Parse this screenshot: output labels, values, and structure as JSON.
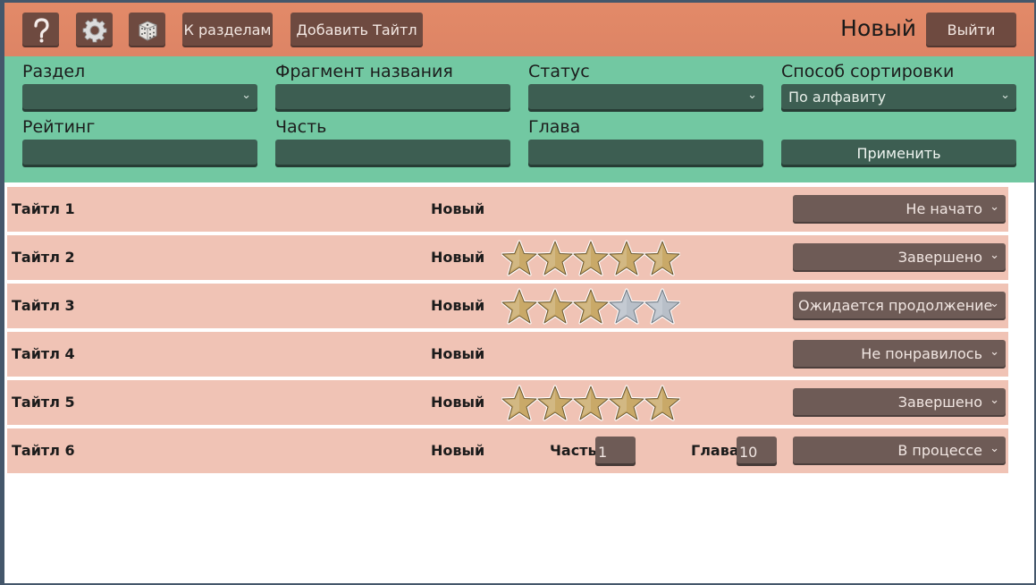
{
  "toolbar": {
    "help_icon": "question-mark-icon",
    "settings_icon": "gear-icon",
    "random_icon": "dice-icon",
    "to_sections_label": "К разделам",
    "add_title_label": "Добавить Тайтл",
    "current_section": "Новый",
    "logout_label": "Выйти"
  },
  "filters": {
    "section_label": "Раздел",
    "section_value": "",
    "fragment_label": "Фрагмент названия",
    "fragment_value": "",
    "status_label": "Статус",
    "status_value": "",
    "sort_label": "Способ сортировки",
    "sort_value": "По алфавиту",
    "rating_label": "Рейтинг",
    "rating_value": "",
    "part_label": "Часть",
    "part_value": "",
    "chapter_label": "Глава",
    "chapter_value": "",
    "apply_label": "Применить"
  },
  "colors": {
    "topbar": "#e08666",
    "filters": "#72c8a2",
    "row": "#f0c3b5",
    "star_gold": "#c9a968",
    "star_silver": "#b8bfc8"
  },
  "titles": [
    {
      "name": "Тайтл 1",
      "section": "Новый",
      "rating": null,
      "status": "Не начато"
    },
    {
      "name": "Тайтл 2",
      "section": "Новый",
      "rating": 5,
      "status": "Завершено"
    },
    {
      "name": "Тайтл 3",
      "section": "Новый",
      "rating": 3,
      "status": "Ожидается продолжение"
    },
    {
      "name": "Тайтл 4",
      "section": "Новый",
      "rating": null,
      "status": "Не понравилось"
    },
    {
      "name": "Тайтл 5",
      "section": "Новый",
      "rating": 5,
      "status": "Завершено"
    },
    {
      "name": "Тайтл 6",
      "section": "Новый",
      "rating": null,
      "status": "В процессе",
      "part_label": "Часть",
      "part_value": "1",
      "chapter_label": "Глава",
      "chapter_value": "10"
    }
  ]
}
